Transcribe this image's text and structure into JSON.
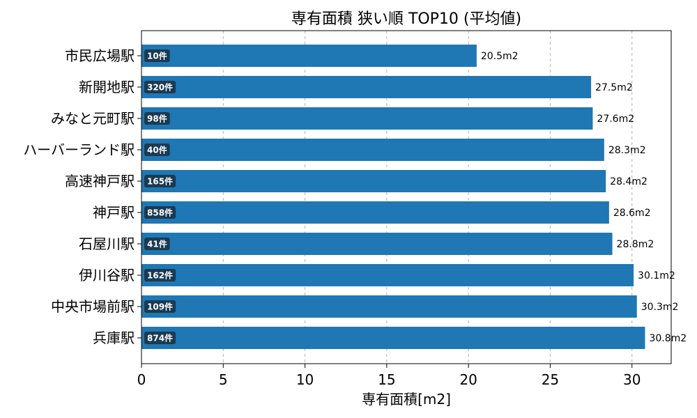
{
  "chart_data": {
    "type": "bar",
    "orientation": "horizontal",
    "title": "専有面積 狭い順 TOP10 (平均値)",
    "xlabel": "専有面積[m2]",
    "ylabel": "",
    "xlim": [
      0,
      32.4
    ],
    "xticks": [
      0,
      5,
      10,
      15,
      20,
      25,
      30
    ],
    "grid": "x-dashed",
    "bar_color": "#1f77b4",
    "badge_color": "#1a3a52",
    "value_suffix": "m2",
    "categories": [
      "市民広場駅",
      "新開地駅",
      "みなと元町駅",
      "ハーバーランド駅",
      "高速神戸駅",
      "神戸駅",
      "石屋川駅",
      "伊川谷駅",
      "中央市場前駅",
      "兵庫駅"
    ],
    "values": [
      20.5,
      27.5,
      27.6,
      28.3,
      28.4,
      28.6,
      28.8,
      30.1,
      30.3,
      30.8
    ],
    "value_labels": [
      "20.5m2",
      "27.5m2",
      "27.6m2",
      "28.3m2",
      "28.4m2",
      "28.6m2",
      "28.8m2",
      "30.1m2",
      "30.3m2",
      "30.8m2"
    ],
    "counts": [
      "10件",
      "320件",
      "98件",
      "40件",
      "165件",
      "858件",
      "41件",
      "162件",
      "109件",
      "874件"
    ]
  }
}
